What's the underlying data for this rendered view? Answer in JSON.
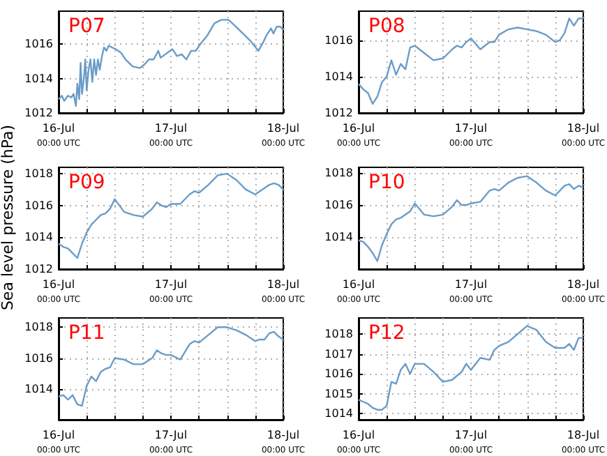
{
  "chart_data": [
    {
      "type": "line",
      "title": "P07",
      "xlim": [
        "--07-16T00:00",
        "--07-18T00:00"
      ],
      "ylim": [
        1012,
        1017.9
      ],
      "yticks": [
        1012,
        1014,
        1016
      ],
      "grid": true,
      "xticks": [
        {
          "value": "--07-16T00:00",
          "label": "16-Jul\n00:00 UTC"
        },
        {
          "value": "--07-16T06:00",
          "label": null
        },
        {
          "value": "--07-16T12:00",
          "label": null
        },
        {
          "value": "--07-16T18:00",
          "label": null
        },
        {
          "value": "--07-17T00:00",
          "label": "17-Jul\n00:00 UTC"
        },
        {
          "value": "--07-17T06:00",
          "label": null
        },
        {
          "value": "--07-17T12:00",
          "label": null
        },
        {
          "value": "--07-17T18:00",
          "label": null
        },
        {
          "value": "--07-18T00:00",
          "label": "18-Jul\n00:00 UTC"
        }
      ],
      "x": [
        "--07-16T00:00",
        "--07-16T00:42",
        "--07-16T01:12",
        "--07-16T02:00",
        "--07-16T02:42",
        "--07-16T03:12",
        "--07-16T03:42",
        "--07-16T04:00",
        "--07-16T04:24",
        "--07-16T04:42",
        "--07-16T05:00",
        "--07-16T05:24",
        "--07-16T05:42",
        "--07-16T06:00",
        "--07-16T06:24",
        "--07-16T06:48",
        "--07-16T07:12",
        "--07-16T07:36",
        "--07-16T08:00",
        "--07-16T08:24",
        "--07-16T08:48",
        "--07-16T09:12",
        "--07-16T09:42",
        "--07-16T10:12",
        "--07-16T10:42",
        "--07-16T11:24",
        "--07-16T12:12",
        "--07-16T13:18",
        "--07-16T14:18",
        "--07-16T15:48",
        "--07-16T17:18",
        "--07-16T18:18",
        "--07-16T19:18",
        "--07-16T20:18",
        "--07-16T21:18",
        "--07-16T21:48",
        "--07-16T22:48",
        "--07-17T00:18",
        "--07-17T01:18",
        "--07-17T02:18",
        "--07-17T03:18",
        "--07-17T04:18",
        "--07-17T05:18",
        "--07-17T06:18",
        "--07-17T07:48",
        "--07-17T09:18",
        "--07-17T10:48",
        "--07-17T12:18",
        "--07-17T13:54",
        "--07-17T15:24",
        "--07-17T16:54",
        "--07-17T18:42",
        "--07-17T19:54",
        "--07-17T20:24",
        "--07-17T21:24",
        "--07-17T21:54",
        "--07-17T22:36",
        "--07-17T23:24",
        "--07-18T00:00"
      ],
      "series": [
        {
          "color": "#6a9cc8",
          "values": [
            1012.8,
            1013.0,
            1012.7,
            1013.0,
            1012.9,
            1013.1,
            1012.4,
            1013.7,
            1012.8,
            1014.9,
            1013.1,
            1014.0,
            1015.1,
            1013.3,
            1014.5,
            1015.1,
            1013.8,
            1015.1,
            1014.2,
            1015.1,
            1014.5,
            1015.2,
            1015.8,
            1015.6,
            1015.9,
            1015.8,
            1015.7,
            1015.5,
            1015.1,
            1014.7,
            1014.6,
            1014.8,
            1015.1,
            1015.1,
            1015.6,
            1015.2,
            1015.4,
            1015.7,
            1015.3,
            1015.4,
            1015.1,
            1015.6,
            1015.6,
            1016.0,
            1016.5,
            1017.2,
            1017.4,
            1017.4,
            1017.0,
            1016.6,
            1016.2,
            1015.6,
            1016.2,
            1016.5,
            1016.9,
            1016.6,
            1017.0,
            1017.0,
            1016.8
          ]
        }
      ]
    },
    {
      "type": "line",
      "title": "P08",
      "xlim": [
        "--07-16T00:00",
        "--07-18T00:00"
      ],
      "ylim": [
        1012,
        1017.6
      ],
      "yticks": [
        1012,
        1014,
        1016
      ],
      "grid": true,
      "xticks": [
        {
          "value": "--07-16T00:00",
          "label": "16-Jul\n00:00 UTC"
        },
        {
          "value": "--07-16T06:00",
          "label": null
        },
        {
          "value": "--07-16T12:00",
          "label": null
        },
        {
          "value": "--07-16T18:00",
          "label": null
        },
        {
          "value": "--07-17T00:00",
          "label": "17-Jul\n00:00 UTC"
        },
        {
          "value": "--07-17T06:00",
          "label": null
        },
        {
          "value": "--07-17T12:00",
          "label": null
        },
        {
          "value": "--07-17T18:00",
          "label": null
        },
        {
          "value": "--07-18T00:00",
          "label": "18-Jul\n00:00 UTC"
        }
      ],
      "x": [
        "--07-16T00:00",
        "--07-16T01:00",
        "--07-16T02:00",
        "--07-16T03:00",
        "--07-16T04:00",
        "--07-16T05:00",
        "--07-16T06:00",
        "--07-16T07:00",
        "--07-16T08:00",
        "--07-16T09:00",
        "--07-16T10:00",
        "--07-16T11:00",
        "--07-16T12:00",
        "--07-16T14:00",
        "--07-16T16:00",
        "--07-16T18:00",
        "--07-16T20:00",
        "--07-16T21:00",
        "--07-16T22:00",
        "--07-16T23:00",
        "--07-17T00:00",
        "--07-17T02:00",
        "--07-17T04:00",
        "--07-17T05:00",
        "--07-17T06:00",
        "--07-17T08:00",
        "--07-17T10:00",
        "--07-17T12:00",
        "--07-17T14:00",
        "--07-17T16:00",
        "--07-17T18:00",
        "--07-17T19:00",
        "--07-17T20:00",
        "--07-17T21:00",
        "--07-17T22:00",
        "--07-17T23:00",
        "--07-18T00:00"
      ],
      "series": [
        {
          "color": "#6a9cc8",
          "values": [
            1013.6,
            1013.3,
            1013.1,
            1012.5,
            1012.9,
            1013.7,
            1014.0,
            1014.9,
            1014.1,
            1014.7,
            1014.4,
            1015.6,
            1015.7,
            1015.3,
            1014.9,
            1015.0,
            1015.5,
            1015.7,
            1015.6,
            1015.9,
            1016.1,
            1015.5,
            1015.9,
            1015.9,
            1016.3,
            1016.6,
            1016.7,
            1016.6,
            1016.5,
            1016.3,
            1015.9,
            1016.0,
            1016.4,
            1017.2,
            1016.8,
            1017.2,
            1017.2
          ]
        }
      ]
    },
    {
      "type": "line",
      "title": "P09",
      "ylabel": "Sea level pressure (hPa)",
      "xlim": [
        "--07-16T00:00",
        "--07-18T00:00"
      ],
      "ylim": [
        1012,
        1018.4
      ],
      "yticks": [
        1012,
        1014,
        1016,
        1018
      ],
      "grid": true,
      "xticks": [
        {
          "value": "--07-16T00:00",
          "label": "16-Jul\n00:00 UTC"
        },
        {
          "value": "--07-16T06:00",
          "label": null
        },
        {
          "value": "--07-16T12:00",
          "label": null
        },
        {
          "value": "--07-16T18:00",
          "label": null
        },
        {
          "value": "--07-17T00:00",
          "label": "17-Jul\n00:00 UTC"
        },
        {
          "value": "--07-17T06:00",
          "label": null
        },
        {
          "value": "--07-17T12:00",
          "label": null
        },
        {
          "value": "--07-17T18:00",
          "label": null
        },
        {
          "value": "--07-18T00:00",
          "label": "18-Jul\n00:00 UTC"
        }
      ],
      "x": [
        "--07-16T00:00",
        "--07-16T01:00",
        "--07-16T02:00",
        "--07-16T03:00",
        "--07-16T04:00",
        "--07-16T05:00",
        "--07-16T06:00",
        "--07-16T07:00",
        "--07-16T08:00",
        "--07-16T09:00",
        "--07-16T10:00",
        "--07-16T11:00",
        "--07-16T12:00",
        "--07-16T14:00",
        "--07-16T16:00",
        "--07-16T18:00",
        "--07-16T20:00",
        "--07-16T21:00",
        "--07-16T22:00",
        "--07-16T23:00",
        "--07-17T00:00",
        "--07-17T02:00",
        "--07-17T04:00",
        "--07-17T05:00",
        "--07-17T06:00",
        "--07-17T08:00",
        "--07-17T10:00",
        "--07-17T12:00",
        "--07-17T14:00",
        "--07-17T16:00",
        "--07-17T18:00",
        "--07-17T19:00",
        "--07-17T20:00",
        "--07-17T21:00",
        "--07-17T22:00",
        "--07-17T23:00",
        "--07-18T00:00"
      ],
      "series": [
        {
          "color": "#6a9cc8",
          "values": [
            1013.6,
            1013.4,
            1013.3,
            1013.0,
            1012.7,
            1013.6,
            1014.3,
            1014.8,
            1015.1,
            1015.4,
            1015.5,
            1015.8,
            1016.4,
            1015.6,
            1015.4,
            1015.3,
            1015.8,
            1016.2,
            1016.0,
            1015.9,
            1016.1,
            1016.1,
            1016.7,
            1016.9,
            1016.8,
            1017.3,
            1017.9,
            1018.0,
            1017.6,
            1017.0,
            1016.7,
            1016.9,
            1017.1,
            1017.3,
            1017.4,
            1017.3,
            1017.0
          ]
        }
      ]
    },
    {
      "type": "line",
      "title": "P10",
      "xlim": [
        "--07-16T00:00",
        "--07-18T00:00"
      ],
      "ylim": [
        1012,
        1018.35
      ],
      "yticks": [
        1014,
        1016,
        1018
      ],
      "grid": true,
      "xticks": [
        {
          "value": "--07-16T00:00",
          "label": "16-Jul\n00:00 UTC"
        },
        {
          "value": "--07-16T06:00",
          "label": null
        },
        {
          "value": "--07-16T12:00",
          "label": null
        },
        {
          "value": "--07-16T18:00",
          "label": null
        },
        {
          "value": "--07-17T00:00",
          "label": "17-Jul\n00:00 UTC"
        },
        {
          "value": "--07-17T06:00",
          "label": null
        },
        {
          "value": "--07-17T12:00",
          "label": null
        },
        {
          "value": "--07-17T18:00",
          "label": null
        },
        {
          "value": "--07-18T00:00",
          "label": "18-Jul\n00:00 UTC"
        }
      ],
      "x": [
        "--07-16T00:00",
        "--07-16T01:00",
        "--07-16T02:00",
        "--07-16T03:00",
        "--07-16T04:00",
        "--07-16T05:00",
        "--07-16T06:00",
        "--07-16T07:00",
        "--07-16T08:00",
        "--07-16T09:00",
        "--07-16T10:00",
        "--07-16T11:00",
        "--07-16T12:00",
        "--07-16T14:00",
        "--07-16T16:00",
        "--07-16T18:00",
        "--07-16T20:00",
        "--07-16T21:00",
        "--07-16T22:00",
        "--07-16T23:00",
        "--07-17T00:00",
        "--07-17T02:00",
        "--07-17T04:00",
        "--07-17T05:00",
        "--07-17T06:00",
        "--07-17T08:00",
        "--07-17T10:00",
        "--07-17T12:00",
        "--07-17T14:00",
        "--07-17T16:00",
        "--07-17T18:00",
        "--07-17T19:00",
        "--07-17T20:00",
        "--07-17T21:00",
        "--07-17T22:00",
        "--07-17T23:00",
        "--07-18T00:00"
      ],
      "series": [
        {
          "color": "#6a9cc8",
          "values": [
            1013.8,
            1013.7,
            1013.4,
            1013.0,
            1012.5,
            1013.5,
            1014.2,
            1014.8,
            1015.1,
            1015.2,
            1015.4,
            1015.6,
            1016.1,
            1015.4,
            1015.3,
            1015.4,
            1015.9,
            1016.3,
            1016.0,
            1016.0,
            1016.1,
            1016.2,
            1016.9,
            1017.0,
            1016.9,
            1017.4,
            1017.7,
            1017.8,
            1017.4,
            1016.9,
            1016.6,
            1016.9,
            1017.2,
            1017.3,
            1017.0,
            1017.2,
            1017.1
          ]
        }
      ]
    },
    {
      "type": "line",
      "title": "P11",
      "xlim": [
        "--07-16T00:00",
        "--07-18T00:00"
      ],
      "ylim": [
        1012,
        1018.6
      ],
      "yticks": [
        1014,
        1016,
        1018
      ],
      "grid": true,
      "xticks": [
        {
          "value": "--07-16T00:00",
          "label": "16-Jul\n00:00 UTC"
        },
        {
          "value": "--07-16T06:00",
          "label": null
        },
        {
          "value": "--07-16T12:00",
          "label": null
        },
        {
          "value": "--07-16T18:00",
          "label": null
        },
        {
          "value": "--07-17T00:00",
          "label": "17-Jul\n00:00 UTC"
        },
        {
          "value": "--07-17T06:00",
          "label": null
        },
        {
          "value": "--07-17T12:00",
          "label": null
        },
        {
          "value": "--07-17T18:00",
          "label": null
        },
        {
          "value": "--07-18T00:00",
          "label": "18-Jul\n00:00 UTC"
        }
      ],
      "x": [
        "--07-16T00:00",
        "--07-16T01:00",
        "--07-16T02:00",
        "--07-16T03:00",
        "--07-16T04:00",
        "--07-16T05:00",
        "--07-16T06:00",
        "--07-16T07:00",
        "--07-16T08:00",
        "--07-16T09:00",
        "--07-16T10:00",
        "--07-16T11:00",
        "--07-16T12:00",
        "--07-16T14:00",
        "--07-16T16:00",
        "--07-16T18:00",
        "--07-16T20:00",
        "--07-16T21:00",
        "--07-16T22:00",
        "--07-16T23:00",
        "--07-17T00:00",
        "--07-17T02:00",
        "--07-17T04:00",
        "--07-17T05:00",
        "--07-17T06:00",
        "--07-17T08:00",
        "--07-17T10:00",
        "--07-17T12:00",
        "--07-17T14:00",
        "--07-17T16:00",
        "--07-17T18:00",
        "--07-17T19:00",
        "--07-17T20:00",
        "--07-17T21:00",
        "--07-17T22:00",
        "--07-17T23:00",
        "--07-18T00:00"
      ],
      "series": [
        {
          "color": "#6a9cc8",
          "values": [
            1013.5,
            1013.6,
            1013.3,
            1013.6,
            1013.0,
            1012.9,
            1014.2,
            1014.8,
            1014.5,
            1015.1,
            1015.3,
            1015.4,
            1016.0,
            1015.9,
            1015.6,
            1015.6,
            1016.0,
            1016.5,
            1016.3,
            1016.2,
            1016.2,
            1015.9,
            1016.9,
            1017.1,
            1017.0,
            1017.5,
            1018.0,
            1018.0,
            1017.8,
            1017.5,
            1017.1,
            1017.2,
            1017.2,
            1017.6,
            1017.7,
            1017.4,
            1017.2
          ]
        }
      ]
    },
    {
      "type": "line",
      "title": "P12",
      "xlim": [
        "--07-16T00:00",
        "--07-18T00:00"
      ],
      "ylim": [
        1013.7,
        1018.8
      ],
      "yticks": [
        1014,
        1015,
        1016,
        1017,
        1018
      ],
      "grid": true,
      "xticks": [
        {
          "value": "--07-16T00:00",
          "label": "16-Jul\n00:00 UTC"
        },
        {
          "value": "--07-16T06:00",
          "label": null
        },
        {
          "value": "--07-16T12:00",
          "label": null
        },
        {
          "value": "--07-16T18:00",
          "label": null
        },
        {
          "value": "--07-17T00:00",
          "label": "17-Jul\n00:00 UTC"
        },
        {
          "value": "--07-17T06:00",
          "label": null
        },
        {
          "value": "--07-17T12:00",
          "label": null
        },
        {
          "value": "--07-17T18:00",
          "label": null
        },
        {
          "value": "--07-18T00:00",
          "label": "18-Jul\n00:00 UTC"
        }
      ],
      "x": [
        "--07-16T00:00",
        "--07-16T01:00",
        "--07-16T02:00",
        "--07-16T03:00",
        "--07-16T04:00",
        "--07-16T05:00",
        "--07-16T06:00",
        "--07-16T07:00",
        "--07-16T08:00",
        "--07-16T09:00",
        "--07-16T10:00",
        "--07-16T11:00",
        "--07-16T12:00",
        "--07-16T14:00",
        "--07-16T16:00",
        "--07-16T18:00",
        "--07-16T20:00",
        "--07-16T21:00",
        "--07-16T22:00",
        "--07-16T23:00",
        "--07-17T00:00",
        "--07-17T02:00",
        "--07-17T04:00",
        "--07-17T05:00",
        "--07-17T06:00",
        "--07-17T08:00",
        "--07-17T10:00",
        "--07-17T12:00",
        "--07-17T14:00",
        "--07-17T16:00",
        "--07-17T18:00",
        "--07-17T19:00",
        "--07-17T20:00",
        "--07-17T21:00",
        "--07-17T22:00",
        "--07-17T23:00",
        "--07-18T00:00"
      ],
      "series": [
        {
          "color": "#6a9cc8",
          "values": [
            1014.7,
            1014.6,
            1014.5,
            1014.3,
            1014.2,
            1014.2,
            1014.4,
            1015.6,
            1015.5,
            1016.2,
            1016.5,
            1016.0,
            1016.5,
            1016.5,
            1016.1,
            1015.6,
            1015.7,
            1015.9,
            1016.1,
            1016.5,
            1016.2,
            1016.8,
            1016.7,
            1017.2,
            1017.4,
            1017.6,
            1018.0,
            1018.4,
            1018.2,
            1017.6,
            1017.3,
            1017.3,
            1017.3,
            1017.5,
            1017.2,
            1017.8,
            1017.8
          ]
        }
      ]
    }
  ]
}
